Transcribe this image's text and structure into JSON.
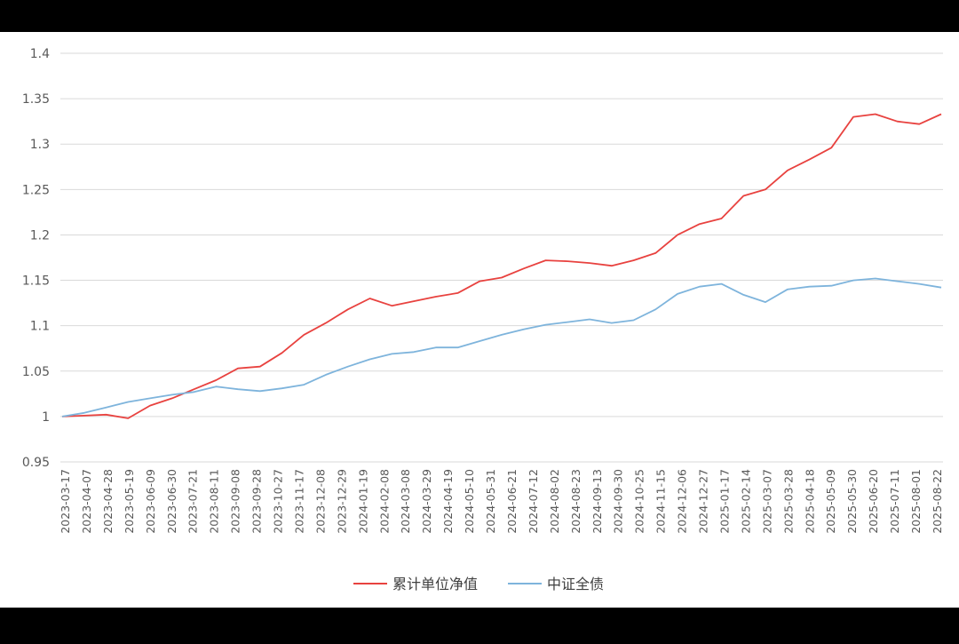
{
  "chart_data": {
    "type": "line",
    "title": "",
    "xlabel": "",
    "ylabel": "",
    "ylim": [
      0.95,
      1.4
    ],
    "y_ticks": [
      "1.4",
      "1.35",
      "1.3",
      "1.25",
      "1.2",
      "1.15",
      "1.1",
      "1.05",
      "1",
      "0.95"
    ],
    "x_ticks": [
      "2023-03-17",
      "2023-04-07",
      "2023-04-28",
      "2023-05-19",
      "2023-06-09",
      "2023-06-30",
      "2023-07-21",
      "2023-08-11",
      "2023-09-08",
      "2023-09-28",
      "2023-10-27",
      "2023-11-17",
      "2023-12-08",
      "2023-12-29",
      "2024-01-19",
      "2024-02-08",
      "2024-03-08",
      "2024-03-29",
      "2024-04-19",
      "2024-05-10",
      "2024-05-31",
      "2024-06-21",
      "2024-07-12",
      "2024-08-02",
      "2024-08-23",
      "2024-09-13",
      "2024-09-30",
      "2024-10-25",
      "2024-11-15",
      "2024-12-06",
      "2024-12-27",
      "2025-01-17",
      "2025-02-14",
      "2025-03-07",
      "2025-03-28",
      "2025-04-18",
      "2025-05-09",
      "2025-05-30",
      "2025-06-20",
      "2025-07-11",
      "2025-08-01",
      "2025-08-22"
    ],
    "grid": true,
    "legend_position": "bottom",
    "series": [
      {
        "name": "累计单位净值",
        "color": "#e8423f",
        "values": [
          1.0,
          1.001,
          1.002,
          0.998,
          1.012,
          1.02,
          1.03,
          1.04,
          1.053,
          1.055,
          1.07,
          1.09,
          1.103,
          1.118,
          1.13,
          1.122,
          1.127,
          1.132,
          1.136,
          1.149,
          1.153,
          1.163,
          1.172,
          1.171,
          1.169,
          1.166,
          1.172,
          1.18,
          1.2,
          1.212,
          1.218,
          1.243,
          1.25,
          1.271,
          1.283,
          1.296,
          1.33,
          1.333,
          1.325,
          1.322,
          1.333
        ]
      },
      {
        "name": "中证全债",
        "color": "#7eb4dc",
        "values": [
          1.0,
          1.004,
          1.01,
          1.016,
          1.02,
          1.024,
          1.027,
          1.033,
          1.03,
          1.028,
          1.031,
          1.035,
          1.046,
          1.055,
          1.063,
          1.069,
          1.071,
          1.076,
          1.076,
          1.083,
          1.09,
          1.096,
          1.101,
          1.104,
          1.107,
          1.103,
          1.106,
          1.118,
          1.135,
          1.143,
          1.146,
          1.134,
          1.126,
          1.14,
          1.143,
          1.144,
          1.15,
          1.152,
          1.149,
          1.146,
          1.142
        ]
      }
    ]
  }
}
